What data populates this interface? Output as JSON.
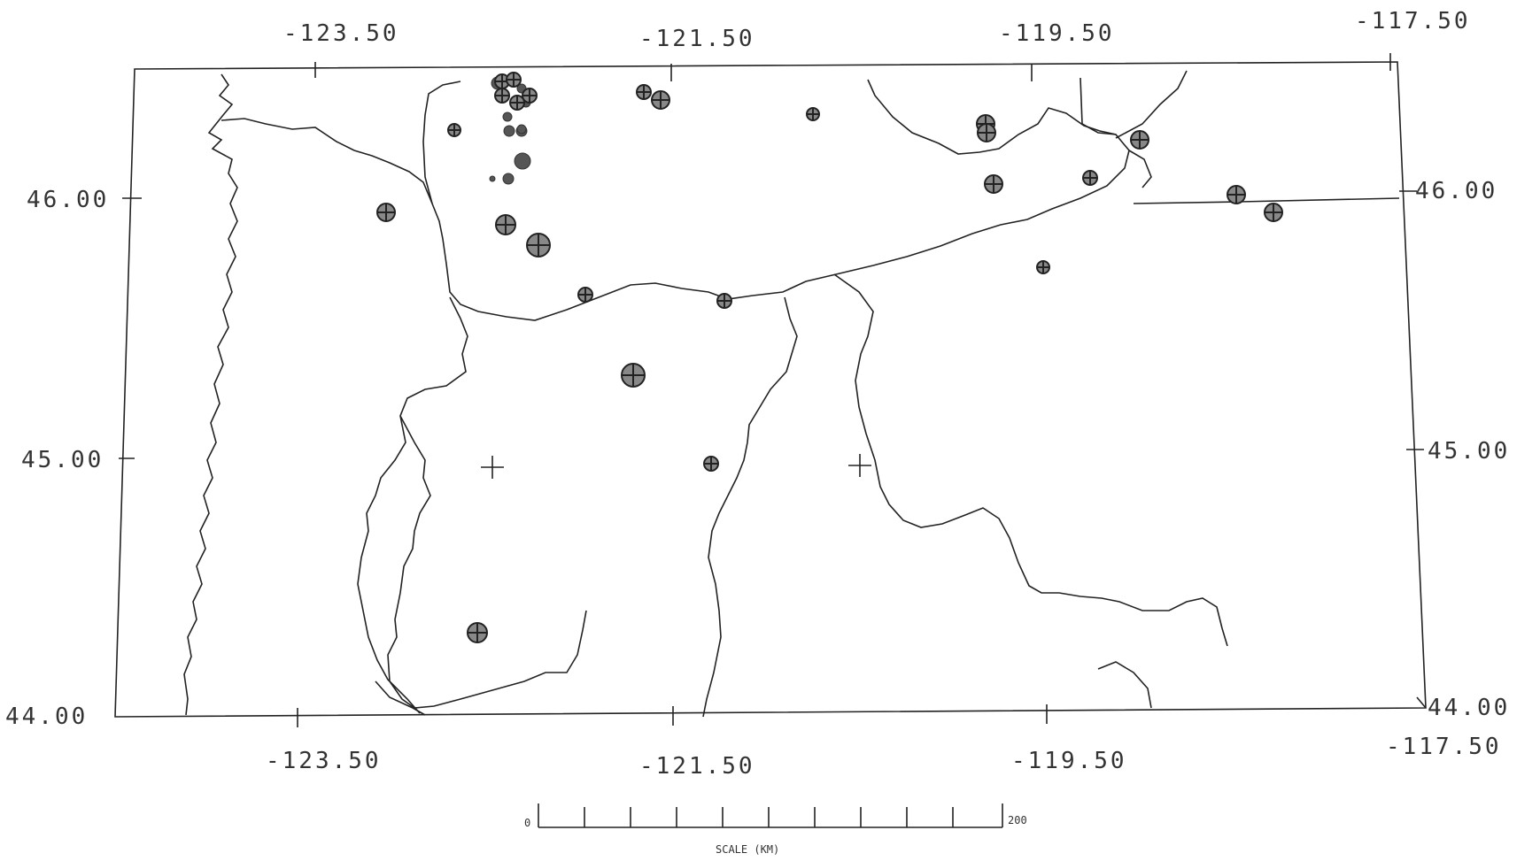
{
  "map": {
    "lon_labels_top": [
      "-123.50",
      "-121.50",
      "-119.50",
      "-117.50"
    ],
    "lon_labels_bottom": [
      "-123.50",
      "-121.50",
      "-119.50",
      "-117.50"
    ],
    "lat_labels_left": [
      "46.00",
      "45.00",
      "44.00"
    ],
    "lat_labels_right": [
      "46.00",
      "45.00",
      "44.00"
    ],
    "scale": {
      "start": "0",
      "end": "200",
      "label": "SCALE (KM)"
    },
    "colors": {
      "ink": "#222222",
      "marker_fill": "#555555",
      "background": "#ffffff"
    }
  }
}
